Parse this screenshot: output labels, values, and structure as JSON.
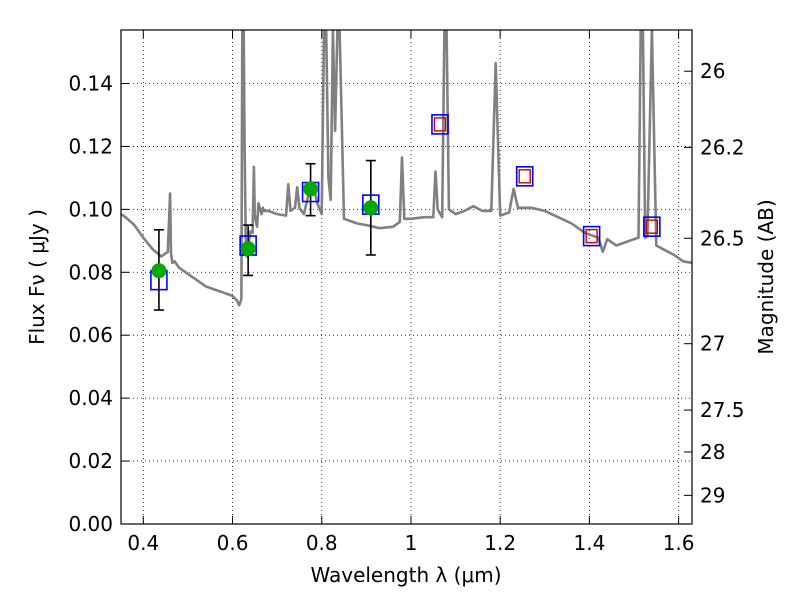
{
  "chart_data": {
    "type": "scatter",
    "title": "",
    "xlabel": "Wavelength  λ (μm)",
    "ylabel": "Flux  Fν  ( μJy )",
    "ylabel_right": "Magnitude (AB)",
    "xlim": [
      0.35,
      1.63
    ],
    "ylim": [
      0.0,
      0.157
    ],
    "grid": true,
    "x_ticks": [
      0.4,
      0.6,
      0.8,
      1.0,
      1.2,
      1.4,
      1.6
    ],
    "x_tick_labels": [
      "0.4",
      "0.6",
      "0.8",
      "1",
      "1.2",
      "1.4",
      "1.6"
    ],
    "y_ticks": [
      0.0,
      0.02,
      0.04,
      0.06,
      0.08,
      0.1,
      0.12,
      0.14
    ],
    "y_tick_labels": [
      "0.00",
      "0.02",
      "0.04",
      "0.06",
      "0.08",
      "0.10",
      "0.12",
      "0.14"
    ],
    "right_ticks": [
      {
        "label": "26",
        "flux": 0.1439
      },
      {
        "label": "26.2",
        "flux": 0.1197
      },
      {
        "label": "26.5",
        "flux": 0.0908
      },
      {
        "label": "27",
        "flux": 0.0573
      },
      {
        "label": "27.5",
        "flux": 0.0362
      },
      {
        "label": "28",
        "flux": 0.0229
      },
      {
        "label": "29",
        "flux": 0.0091
      }
    ],
    "colors": {
      "sed": "#808080",
      "observed": "#00aa00",
      "model_outer": "#0000ff",
      "model_inner": "#cc0000",
      "errorbar": "#000000"
    },
    "series": [
      {
        "kind": "observed_photometry",
        "marker": "filled-circle",
        "x": [
          0.435,
          0.635,
          0.775,
          0.91
        ],
        "y": [
          0.0805,
          0.0875,
          0.1065,
          0.1005
        ],
        "yerr_low": [
          0.068,
          0.079,
          0.098,
          0.0855
        ],
        "yerr_high": [
          0.0935,
          0.095,
          0.1145,
          0.1155
        ]
      },
      {
        "kind": "model_photometry",
        "marker": "square",
        "x": [
          0.435,
          0.635,
          0.775,
          0.91,
          1.065,
          1.255,
          1.405,
          1.54
        ],
        "y": [
          0.0775,
          0.0885,
          0.1055,
          0.1015,
          0.127,
          0.1105,
          0.0915,
          0.0945
        ],
        "inner_red": [
          false,
          false,
          false,
          false,
          true,
          true,
          true,
          true
        ]
      },
      {
        "kind": "sed_template",
        "style": "line",
        "x": [
          0.35,
          0.36,
          0.38,
          0.4,
          0.42,
          0.44,
          0.455,
          0.46,
          0.462,
          0.465,
          0.47,
          0.48,
          0.5,
          0.52,
          0.54,
          0.56,
          0.58,
          0.6,
          0.61,
          0.615,
          0.62,
          0.622,
          0.625,
          0.627,
          0.63,
          0.632,
          0.635,
          0.637,
          0.64,
          0.645,
          0.648,
          0.65,
          0.655,
          0.658,
          0.665,
          0.668,
          0.67,
          0.68,
          0.7,
          0.72,
          0.725,
          0.73,
          0.74,
          0.745,
          0.75,
          0.76,
          0.77,
          0.78,
          0.79,
          0.8,
          0.805,
          0.81,
          0.815,
          0.82,
          0.825,
          0.83,
          0.835,
          0.84,
          0.85,
          0.86,
          0.88,
          0.9,
          0.93,
          0.96,
          0.975,
          0.98,
          0.985,
          1.0,
          1.03,
          1.05,
          1.055,
          1.06,
          1.07,
          1.075,
          1.08,
          1.085,
          1.1,
          1.12,
          1.14,
          1.16,
          1.18,
          1.19,
          1.2,
          1.22,
          1.23,
          1.24,
          1.27,
          1.3,
          1.33,
          1.36,
          1.39,
          1.42,
          1.43,
          1.44,
          1.46,
          1.48,
          1.5,
          1.51,
          1.515,
          1.52,
          1.525,
          1.53,
          1.54,
          1.55,
          1.57,
          1.59,
          1.61,
          1.63
        ],
        "y": [
          0.0985,
          0.0975,
          0.095,
          0.091,
          0.0875,
          0.085,
          0.0865,
          0.105,
          0.086,
          0.083,
          0.0835,
          0.0815,
          0.0795,
          0.0775,
          0.0755,
          0.0745,
          0.0735,
          0.0725,
          0.071,
          0.0695,
          0.0715,
          0.157,
          0.157,
          0.12,
          0.087,
          0.085,
          0.086,
          0.09,
          0.093,
          0.0925,
          0.1135,
          0.098,
          0.0945,
          0.102,
          0.0985,
          0.1005,
          0.0995,
          0.0995,
          0.0985,
          0.098,
          0.108,
          0.0995,
          0.1005,
          0.107,
          0.1005,
          0.0985,
          0.1045,
          0.1085,
          0.102,
          0.0985,
          0.157,
          0.157,
          0.11,
          0.103,
          0.157,
          0.125,
          0.157,
          0.157,
          0.097,
          0.0965,
          0.0955,
          0.095,
          0.094,
          0.0945,
          0.096,
          0.1165,
          0.097,
          0.097,
          0.0975,
          0.0975,
          0.112,
          0.1,
          0.0975,
          0.157,
          0.157,
          0.1,
          0.0985,
          0.0995,
          0.101,
          0.0995,
          0.0995,
          0.1465,
          0.098,
          0.099,
          0.1065,
          0.1005,
          0.1005,
          0.0995,
          0.0975,
          0.0955,
          0.0925,
          0.091,
          0.0865,
          0.0905,
          0.0885,
          0.0895,
          0.0905,
          0.091,
          0.157,
          0.157,
          0.091,
          0.0915,
          0.157,
          0.0885,
          0.087,
          0.0855,
          0.0835,
          0.083
        ]
      }
    ]
  }
}
